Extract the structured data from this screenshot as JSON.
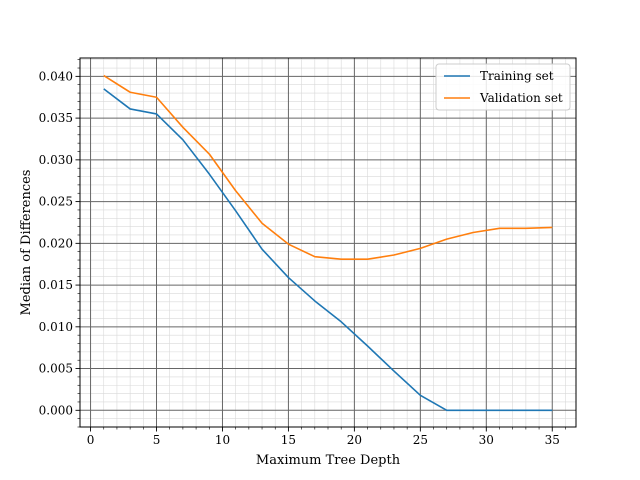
{
  "chart_data": {
    "type": "line",
    "xlabel": "Maximum Tree Depth",
    "ylabel": "Median of Differences",
    "xlim": [
      -0.8,
      36.8
    ],
    "ylim": [
      -0.002,
      0.0422
    ],
    "xticks": [
      0,
      5,
      10,
      15,
      20,
      25,
      30,
      35
    ],
    "xtick_labels": [
      "0",
      "5",
      "10",
      "15",
      "20",
      "25",
      "30",
      "35"
    ],
    "yticks": [
      0.0,
      0.005,
      0.01,
      0.015,
      0.02,
      0.025,
      0.03,
      0.035,
      0.04
    ],
    "ytick_labels": [
      "0.000",
      "0.005",
      "0.010",
      "0.015",
      "0.020",
      "0.025",
      "0.030",
      "0.035",
      "0.040"
    ],
    "grid": "major and minor",
    "legend_position": "top-right",
    "x": [
      1,
      3,
      5,
      7,
      9,
      11,
      13,
      15,
      17,
      19,
      21,
      23,
      25,
      27,
      29,
      31,
      33,
      35
    ],
    "series": [
      {
        "name": "Training set",
        "color": "#1f77b4",
        "values": [
          0.0385,
          0.0361,
          0.0355,
          0.0324,
          0.0283,
          0.0239,
          0.0193,
          0.0159,
          0.0131,
          0.0106,
          0.0077,
          0.0047,
          0.0018,
          0.0,
          0.0,
          0.0,
          0.0,
          0.0
        ]
      },
      {
        "name": "Validation set",
        "color": "#ff7f0e",
        "values": [
          0.0401,
          0.0381,
          0.0375,
          0.0339,
          0.0307,
          0.0263,
          0.0224,
          0.0199,
          0.0184,
          0.0181,
          0.0181,
          0.0186,
          0.0194,
          0.0205,
          0.0213,
          0.0218,
          0.0218,
          0.0219
        ]
      }
    ]
  }
}
